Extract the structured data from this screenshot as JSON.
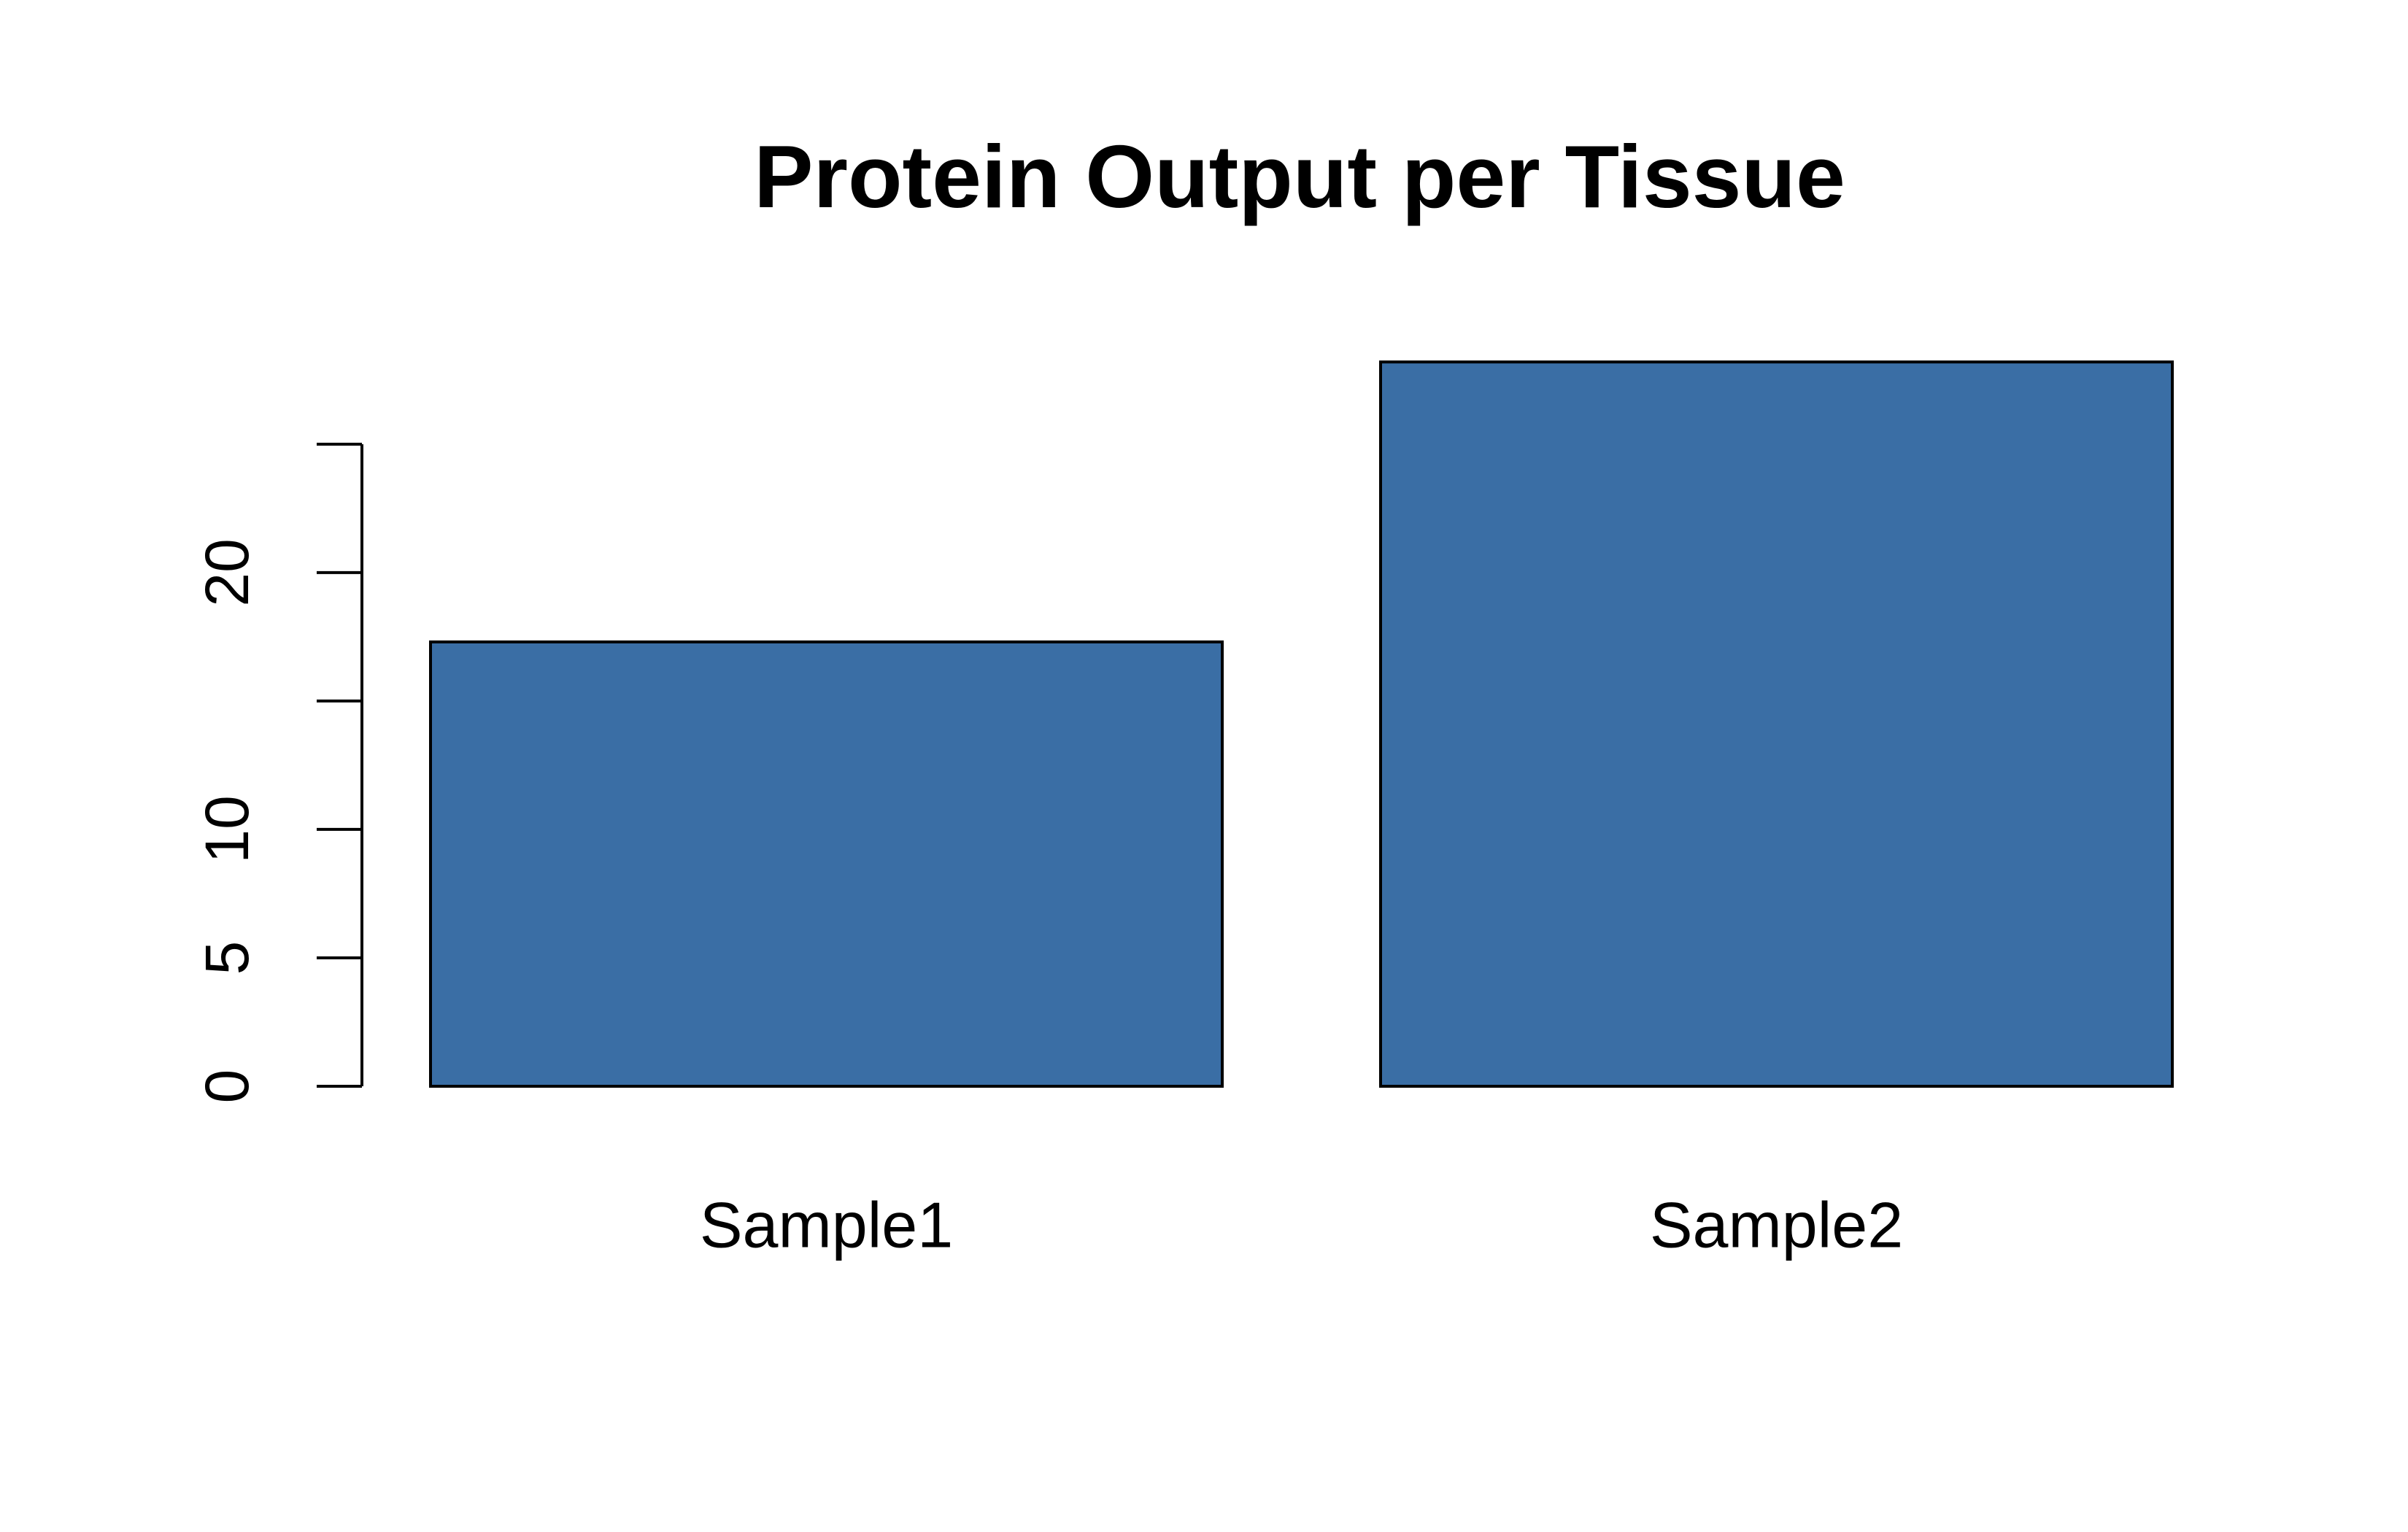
{
  "chart_data": {
    "type": "bar",
    "title": "Protein Output per Tissue",
    "categories": [
      "Sample1",
      "Sample2"
    ],
    "values": [
      17.3,
      28.2
    ],
    "color": "#3a6ea5",
    "ylim": [
      0,
      29
    ],
    "yticks": [
      0,
      5,
      10,
      {
        "value": 15,
        "label": null
      },
      20,
      {
        "value": 25,
        "label": null
      }
    ]
  }
}
